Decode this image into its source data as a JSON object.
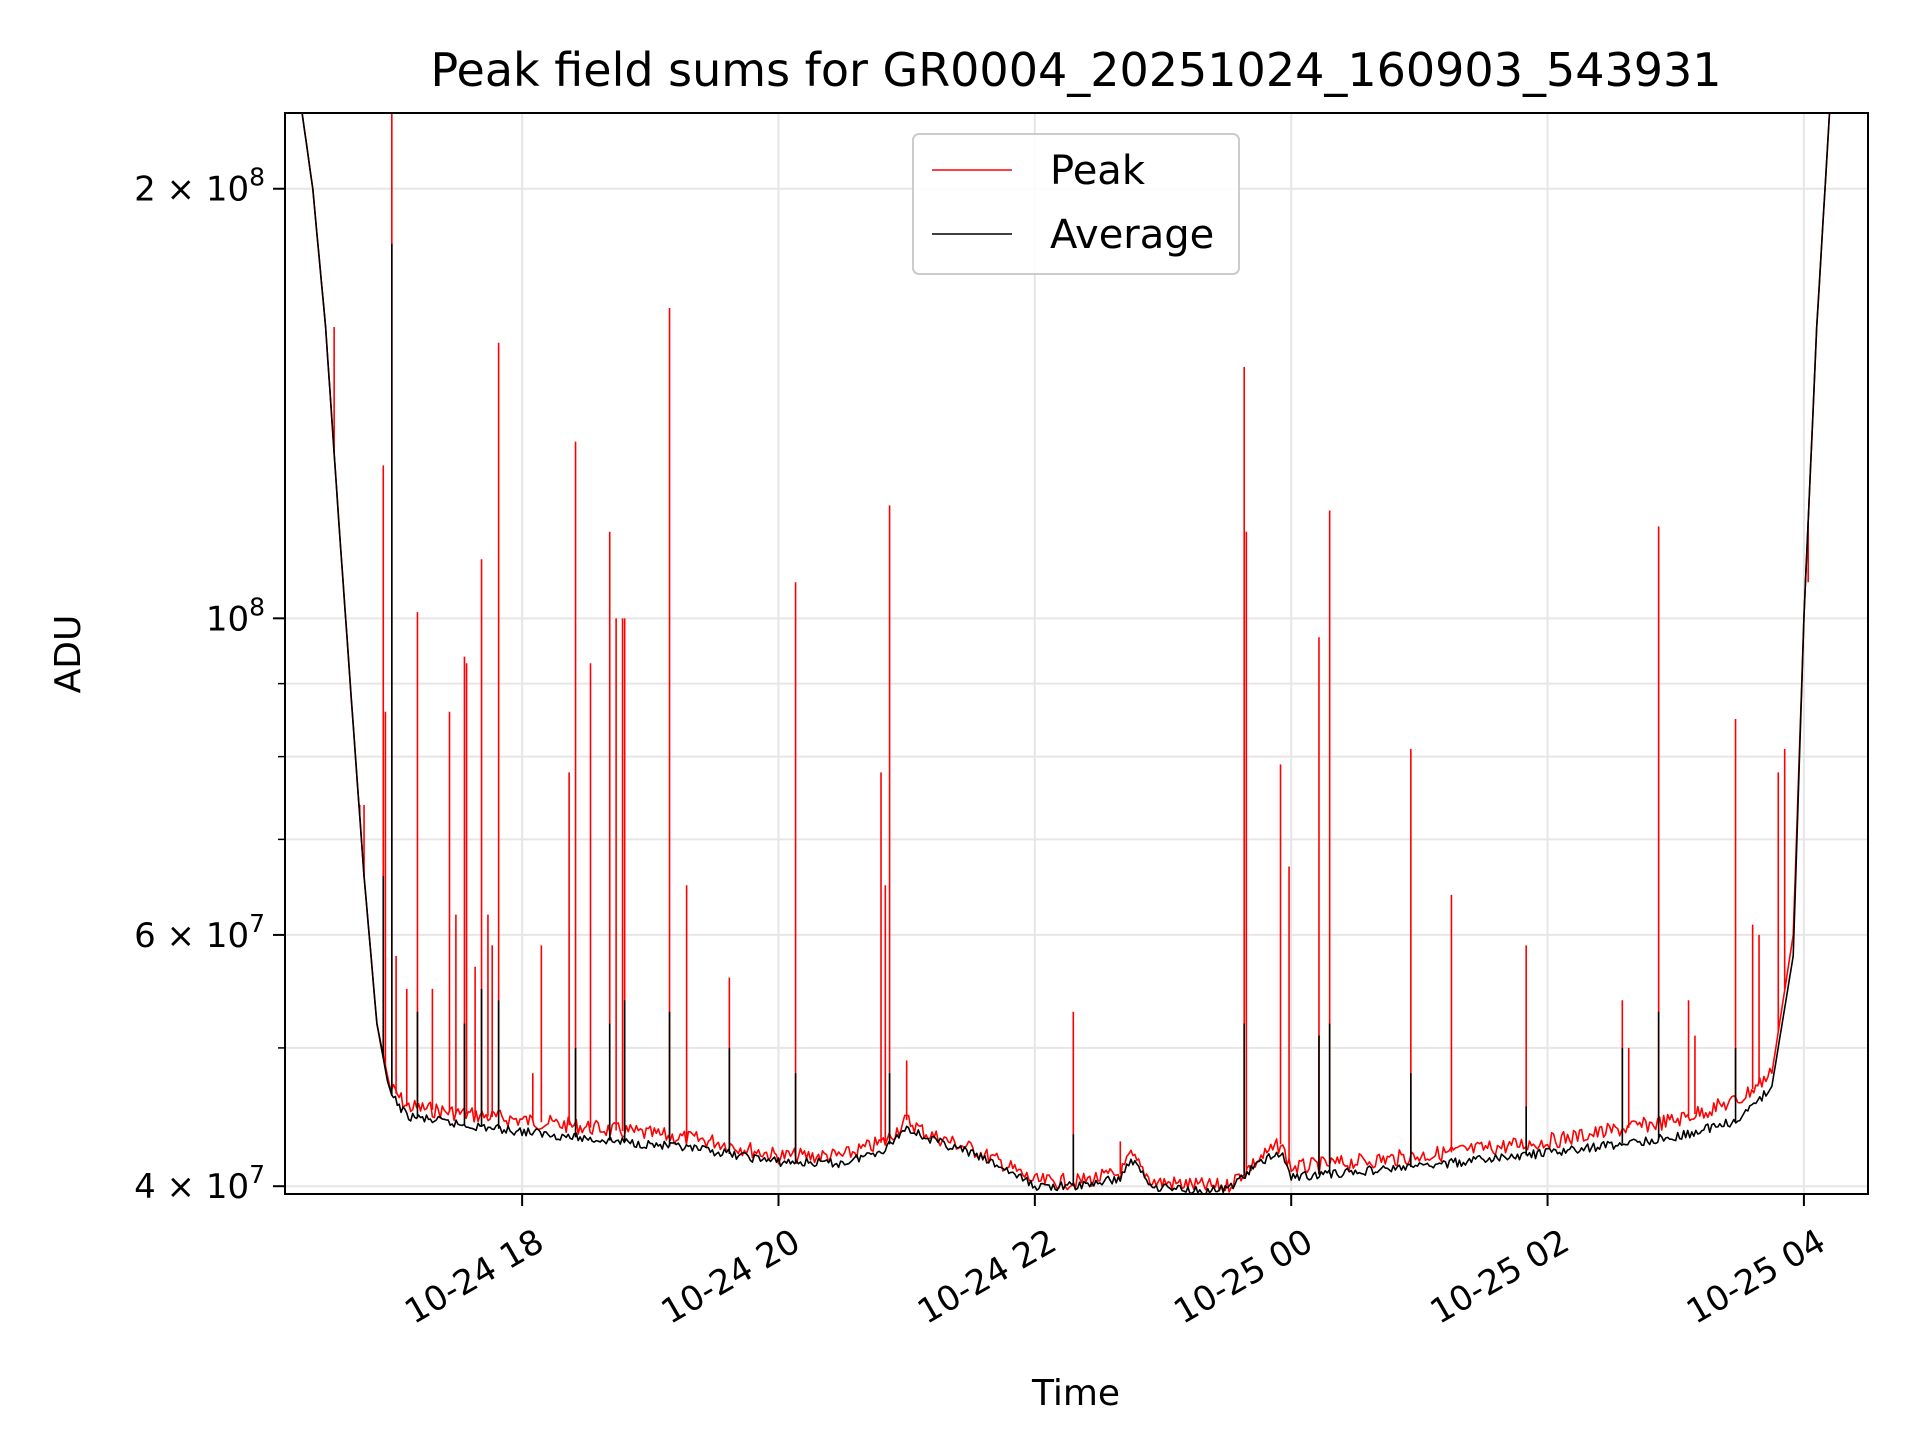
{
  "chart_data": {
    "type": "line",
    "title": "Peak field sums for GR0004_20251024_160903_543931",
    "xlabel": "Time",
    "ylabel": "ADU",
    "yscale": "log",
    "ylim": [
      39500000,
      226000000
    ],
    "xlim": [
      "2025-10-24T16:09",
      "2025-10-25T04:30"
    ],
    "grid": true,
    "legend_position": "top-center",
    "x_ticks": [
      {
        "time": "2025-10-24T18:00",
        "label": "10-24 18"
      },
      {
        "time": "2025-10-24T20:00",
        "label": "10-24 20"
      },
      {
        "time": "2025-10-24T22:00",
        "label": "10-24 22"
      },
      {
        "time": "2025-10-25T00:00",
        "label": "10-25 00"
      },
      {
        "time": "2025-10-25T02:00",
        "label": "10-25 02"
      },
      {
        "time": "2025-10-25T04:00",
        "label": "10-25 04"
      }
    ],
    "y_ticks": [
      {
        "value": 40000000,
        "mantissa": "4",
        "exp": "7"
      },
      {
        "value": 60000000,
        "mantissa": "6",
        "exp": "7"
      },
      {
        "value": 100000000,
        "mantissa": "",
        "exp": "8"
      },
      {
        "value": 200000000,
        "mantissa": "2",
        "exp": "8"
      }
    ],
    "y_minor_ticks": [
      50000000,
      70000000,
      80000000,
      90000000
    ],
    "series": [
      {
        "name": "Peak",
        "color": "#ff0000",
        "baseline": [
          [
            "2025-10-24T16:09",
            226000000
          ],
          [
            "2025-10-24T16:17",
            226000000
          ],
          [
            "2025-10-24T16:22",
            200000000
          ],
          [
            "2025-10-24T16:28",
            160000000
          ],
          [
            "2025-10-24T16:34",
            118000000
          ],
          [
            "2025-10-24T16:40",
            88000000
          ],
          [
            "2025-10-24T16:46",
            66000000
          ],
          [
            "2025-10-24T16:52",
            52000000
          ],
          [
            "2025-10-24T16:58",
            47000000
          ],
          [
            "2025-10-24T17:06",
            45500000
          ],
          [
            "2025-10-24T17:30",
            45000000
          ],
          [
            "2025-10-24T18:00",
            44500000
          ],
          [
            "2025-10-24T18:30",
            44000000
          ],
          [
            "2025-10-24T19:00",
            43500000
          ],
          [
            "2025-10-24T19:30",
            43000000
          ],
          [
            "2025-10-24T20:00",
            42000000
          ],
          [
            "2025-10-24T20:30",
            42000000
          ],
          [
            "2025-10-24T20:50",
            43000000
          ],
          [
            "2025-10-24T21:00",
            44500000
          ],
          [
            "2025-10-24T21:10",
            43500000
          ],
          [
            "2025-10-24T21:30",
            42500000
          ],
          [
            "2025-10-24T21:45",
            41500000
          ],
          [
            "2025-10-24T22:00",
            40300000
          ],
          [
            "2025-10-24T22:20",
            40300000
          ],
          [
            "2025-10-24T22:40",
            40800000
          ],
          [
            "2025-10-24T22:45",
            42000000
          ],
          [
            "2025-10-24T22:55",
            40300000
          ],
          [
            "2025-10-24T23:20",
            40000000
          ],
          [
            "2025-10-24T23:30",
            40000000
          ],
          [
            "2025-10-24T23:45",
            41800000
          ],
          [
            "2025-10-24T23:55",
            42800000
          ],
          [
            "2025-10-25T00:00",
            41200000
          ],
          [
            "2025-10-25T01:00",
            42000000
          ],
          [
            "2025-10-25T02:00",
            43000000
          ],
          [
            "2025-10-25T03:00",
            44500000
          ],
          [
            "2025-10-25T03:30",
            46000000
          ],
          [
            "2025-10-25T03:45",
            48000000
          ],
          [
            "2025-10-25T03:55",
            60000000
          ],
          [
            "2025-10-25T04:00",
            100000000
          ],
          [
            "2025-10-25T04:06",
            160000000
          ],
          [
            "2025-10-25T04:12",
            226000000
          ],
          [
            "2025-10-25T04:30",
            226000000
          ]
        ],
        "spikes": [
          [
            "2025-10-24T16:32",
            160000000
          ],
          [
            "2025-10-24T16:40",
            88000000
          ],
          [
            "2025-10-24T16:44",
            74000000
          ],
          [
            "2025-10-24T16:46",
            74000000
          ],
          [
            "2025-10-24T16:55",
            128000000
          ],
          [
            "2025-10-24T16:56",
            86000000
          ],
          [
            "2025-10-24T16:59",
            226000000
          ],
          [
            "2025-10-24T17:01",
            58000000
          ],
          [
            "2025-10-24T17:06",
            55000000
          ],
          [
            "2025-10-24T17:11",
            101000000
          ],
          [
            "2025-10-24T17:18",
            55000000
          ],
          [
            "2025-10-24T17:26",
            86000000
          ],
          [
            "2025-10-24T17:29",
            62000000
          ],
          [
            "2025-10-24T17:33",
            94000000
          ],
          [
            "2025-10-24T17:34",
            93000000
          ],
          [
            "2025-10-24T17:38",
            57000000
          ],
          [
            "2025-10-24T17:41",
            110000000
          ],
          [
            "2025-10-24T17:44",
            62000000
          ],
          [
            "2025-10-24T17:46",
            59000000
          ],
          [
            "2025-10-24T17:49",
            156000000
          ],
          [
            "2025-10-24T18:05",
            48000000
          ],
          [
            "2025-10-24T18:09",
            59000000
          ],
          [
            "2025-10-24T18:22",
            78000000
          ],
          [
            "2025-10-24T18:25",
            133000000
          ],
          [
            "2025-10-24T18:32",
            93000000
          ],
          [
            "2025-10-24T18:41",
            115000000
          ],
          [
            "2025-10-24T18:44",
            100000000
          ],
          [
            "2025-10-24T18:47",
            100000000
          ],
          [
            "2025-10-24T18:48",
            100000000
          ],
          [
            "2025-10-24T19:09",
            165000000
          ],
          [
            "2025-10-24T19:17",
            65000000
          ],
          [
            "2025-10-24T19:37",
            56000000
          ],
          [
            "2025-10-24T20:08",
            106000000
          ],
          [
            "2025-10-24T20:48",
            78000000
          ],
          [
            "2025-10-24T20:50",
            65000000
          ],
          [
            "2025-10-24T20:52",
            120000000
          ],
          [
            "2025-10-24T21:00",
            49000000
          ],
          [
            "2025-10-24T22:18",
            53000000
          ],
          [
            "2025-10-24T22:40",
            43000000
          ],
          [
            "2025-10-24T23:38",
            150000000
          ],
          [
            "2025-10-24T23:39",
            115000000
          ],
          [
            "2025-10-24T23:55",
            79000000
          ],
          [
            "2025-10-24T23:59",
            67000000
          ],
          [
            "2025-10-25T00:13",
            97000000
          ],
          [
            "2025-10-25T00:18",
            119000000
          ],
          [
            "2025-10-25T00:56",
            81000000
          ],
          [
            "2025-10-25T01:15",
            64000000
          ],
          [
            "2025-10-25T01:50",
            59000000
          ],
          [
            "2025-10-25T02:35",
            54000000
          ],
          [
            "2025-10-25T02:38",
            50000000
          ],
          [
            "2025-10-25T02:52",
            116000000
          ],
          [
            "2025-10-25T03:06",
            54000000
          ],
          [
            "2025-10-25T03:09",
            51000000
          ],
          [
            "2025-10-25T03:28",
            85000000
          ],
          [
            "2025-10-25T03:36",
            61000000
          ],
          [
            "2025-10-25T03:39",
            60000000
          ],
          [
            "2025-10-25T03:48",
            78000000
          ],
          [
            "2025-10-25T03:51",
            81000000
          ],
          [
            "2025-10-25T04:00",
            100000000
          ],
          [
            "2025-10-25T04:02",
            106000000
          ]
        ]
      },
      {
        "name": "Average",
        "color": "#000000",
        "baseline": [
          [
            "2025-10-24T16:09",
            226000000
          ],
          [
            "2025-10-24T16:17",
            226000000
          ],
          [
            "2025-10-24T16:22",
            200000000
          ],
          [
            "2025-10-24T16:28",
            160000000
          ],
          [
            "2025-10-24T16:34",
            118000000
          ],
          [
            "2025-10-24T16:40",
            88000000
          ],
          [
            "2025-10-24T16:46",
            66000000
          ],
          [
            "2025-10-24T16:52",
            52000000
          ],
          [
            "2025-10-24T16:58",
            46500000
          ],
          [
            "2025-10-24T17:06",
            44800000
          ],
          [
            "2025-10-24T17:30",
            44200000
          ],
          [
            "2025-10-24T18:00",
            43700000
          ],
          [
            "2025-10-24T18:30",
            43200000
          ],
          [
            "2025-10-24T19:00",
            42800000
          ],
          [
            "2025-10-24T19:30",
            42300000
          ],
          [
            "2025-10-24T20:00",
            41600000
          ],
          [
            "2025-10-24T20:30",
            41500000
          ],
          [
            "2025-10-24T20:50",
            42500000
          ],
          [
            "2025-10-24T21:00",
            44000000
          ],
          [
            "2025-10-24T21:10",
            43200000
          ],
          [
            "2025-10-24T21:30",
            42200000
          ],
          [
            "2025-10-24T21:45",
            41200000
          ],
          [
            "2025-10-24T22:00",
            40000000
          ],
          [
            "2025-10-24T22:20",
            40000000
          ],
          [
            "2025-10-24T22:40",
            40500000
          ],
          [
            "2025-10-24T22:45",
            41800000
          ],
          [
            "2025-10-24T22:55",
            40000000
          ],
          [
            "2025-10-24T23:20",
            39700000
          ],
          [
            "2025-10-24T23:30",
            39800000
          ],
          [
            "2025-10-24T23:45",
            41500000
          ],
          [
            "2025-10-24T23:55",
            42300000
          ],
          [
            "2025-10-25T00:00",
            40600000
          ],
          [
            "2025-10-25T01:00",
            41300000
          ],
          [
            "2025-10-25T02:00",
            42200000
          ],
          [
            "2025-10-25T03:00",
            43300000
          ],
          [
            "2025-10-25T03:30",
            44500000
          ],
          [
            "2025-10-25T03:45",
            47000000
          ],
          [
            "2025-10-25T03:55",
            58000000
          ],
          [
            "2025-10-25T04:00",
            100000000
          ],
          [
            "2025-10-25T04:06",
            160000000
          ],
          [
            "2025-10-25T04:12",
            226000000
          ],
          [
            "2025-10-25T04:30",
            226000000
          ]
        ],
        "spikes": [
          [
            "2025-10-24T16:55",
            66000000
          ],
          [
            "2025-10-24T16:59",
            183000000
          ],
          [
            "2025-10-24T17:11",
            53000000
          ],
          [
            "2025-10-24T17:33",
            52000000
          ],
          [
            "2025-10-24T17:41",
            55000000
          ],
          [
            "2025-10-24T17:49",
            54000000
          ],
          [
            "2025-10-24T18:25",
            50000000
          ],
          [
            "2025-10-24T18:41",
            52000000
          ],
          [
            "2025-10-24T18:48",
            54000000
          ],
          [
            "2025-10-24T19:09",
            53000000
          ],
          [
            "2025-10-24T19:37",
            50000000
          ],
          [
            "2025-10-24T20:08",
            48000000
          ],
          [
            "2025-10-24T20:52",
            48000000
          ],
          [
            "2025-10-24T22:18",
            43500000
          ],
          [
            "2025-10-24T23:38",
            52000000
          ],
          [
            "2025-10-25T00:13",
            51000000
          ],
          [
            "2025-10-25T00:18",
            52000000
          ],
          [
            "2025-10-25T00:56",
            48000000
          ],
          [
            "2025-10-25T01:50",
            45500000
          ],
          [
            "2025-10-25T02:35",
            50000000
          ],
          [
            "2025-10-25T02:52",
            53000000
          ],
          [
            "2025-10-25T03:28",
            50000000
          ]
        ]
      }
    ]
  }
}
